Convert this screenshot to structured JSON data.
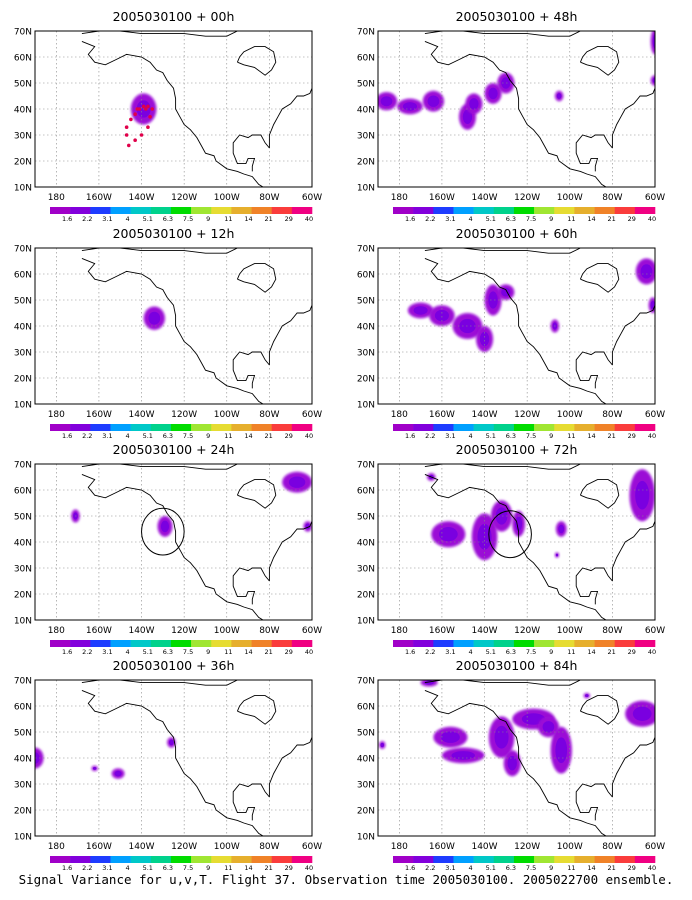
{
  "colorbar": {
    "labels": [
      "1.6",
      "2.2",
      "3.1",
      "4",
      "5.1",
      "6.3",
      "7.5",
      "9",
      "11",
      "14",
      "21",
      "29",
      "40"
    ],
    "colors": [
      "#a000c8",
      "#8200dc",
      "#1e3cff",
      "#00a0ff",
      "#00c8c8",
      "#00d28c",
      "#00dc00",
      "#a0e632",
      "#e6dc32",
      "#e6af2d",
      "#f08228",
      "#fa3c3c",
      "#f00082"
    ]
  },
  "axes": {
    "lon_labels": [
      "180",
      "160W",
      "140W",
      "120W",
      "100W",
      "80W",
      "60W"
    ],
    "lat_labels": [
      "10N",
      "20N",
      "30N",
      "40N",
      "50N",
      "60N",
      "70N"
    ]
  },
  "map": {
    "lon_range": [
      -190,
      -60
    ],
    "lat_range": [
      10,
      70
    ],
    "grid": true
  },
  "panels": [
    {
      "title": "2005030100 + 00h",
      "blobs": [
        {
          "lon": -139,
          "lat": 40,
          "rlon": 6,
          "rlat": 6
        }
      ],
      "circles": [],
      "track": [
        [
          -142,
          40
        ],
        [
          -138,
          40
        ],
        [
          -136,
          37
        ],
        [
          -137,
          33
        ],
        [
          -140,
          30
        ],
        [
          -143,
          28
        ],
        [
          -146,
          26
        ],
        [
          -147,
          30
        ],
        [
          -147,
          33
        ],
        [
          -145,
          36
        ],
        [
          -143,
          38
        ],
        [
          -141,
          40
        ],
        [
          -139,
          41
        ],
        [
          -137,
          41
        ],
        [
          -135,
          40
        ]
      ]
    },
    {
      "title": "2005030100 + 12h",
      "blobs": [
        {
          "lon": -134,
          "lat": 43,
          "rlon": 5,
          "rlat": 4.5
        }
      ],
      "circles": [],
      "track": []
    },
    {
      "title": "2005030100 + 24h",
      "blobs": [
        {
          "lon": -171,
          "lat": 50,
          "rlon": 2,
          "rlat": 2.5
        },
        {
          "lon": -129,
          "lat": 46,
          "rlon": 3.5,
          "rlat": 4
        },
        {
          "lon": -67,
          "lat": 63,
          "rlon": 7,
          "rlat": 4
        },
        {
          "lon": -62,
          "lat": 46,
          "rlon": 2,
          "rlat": 2
        }
      ],
      "circles": [
        {
          "lon": -130,
          "lat": 44,
          "rlon": 10,
          "rlat": 9
        }
      ],
      "track": []
    },
    {
      "title": "2005030100 + 36h",
      "blobs": [
        {
          "lon": -190,
          "lat": 40,
          "rlon": 4,
          "rlat": 4
        },
        {
          "lon": -162,
          "lat": 36,
          "rlon": 1.5,
          "rlat": 1
        },
        {
          "lon": -151,
          "lat": 34,
          "rlon": 3,
          "rlat": 2
        },
        {
          "lon": -126,
          "lat": 46,
          "rlon": 2,
          "rlat": 2
        }
      ],
      "circles": [],
      "track": []
    },
    {
      "title": "2005030100 + 48h",
      "blobs": [
        {
          "lon": -186,
          "lat": 43,
          "rlon": 5,
          "rlat": 3.5
        },
        {
          "lon": -175,
          "lat": 41,
          "rlon": 6,
          "rlat": 3
        },
        {
          "lon": -164,
          "lat": 43,
          "rlon": 5,
          "rlat": 4
        },
        {
          "lon": -148,
          "lat": 37,
          "rlon": 4,
          "rlat": 5
        },
        {
          "lon": -145,
          "lat": 42,
          "rlon": 4,
          "rlat": 4
        },
        {
          "lon": -136,
          "lat": 46,
          "rlon": 4,
          "rlat": 4
        },
        {
          "lon": -130,
          "lat": 50,
          "rlon": 4,
          "rlat": 4
        },
        {
          "lon": -105,
          "lat": 45,
          "rlon": 2,
          "rlat": 2
        },
        {
          "lon": -60,
          "lat": 66,
          "rlon": 2,
          "rlat": 5
        },
        {
          "lon": -60,
          "lat": 51,
          "rlon": 2,
          "rlat": 2
        }
      ],
      "circles": [],
      "track": []
    },
    {
      "title": "2005030100 + 60h",
      "blobs": [
        {
          "lon": -170,
          "lat": 46,
          "rlon": 6,
          "rlat": 3
        },
        {
          "lon": -160,
          "lat": 44,
          "rlon": 6,
          "rlat": 4
        },
        {
          "lon": -148,
          "lat": 40,
          "rlon": 7,
          "rlat": 5
        },
        {
          "lon": -140,
          "lat": 35,
          "rlon": 4,
          "rlat": 5
        },
        {
          "lon": -136,
          "lat": 50,
          "rlon": 4,
          "rlat": 6
        },
        {
          "lon": -130,
          "lat": 53,
          "rlon": 4,
          "rlat": 3
        },
        {
          "lon": -107,
          "lat": 40,
          "rlon": 2,
          "rlat": 2.5
        },
        {
          "lon": -64,
          "lat": 61,
          "rlon": 5,
          "rlat": 5
        },
        {
          "lon": -61,
          "lat": 48,
          "rlon": 2,
          "rlat": 3
        }
      ],
      "circles": [],
      "track": []
    },
    {
      "title": "2005030100 + 72h",
      "blobs": [
        {
          "lon": -157,
          "lat": 43,
          "rlon": 8,
          "rlat": 5
        },
        {
          "lon": -140,
          "lat": 42,
          "rlon": 6,
          "rlat": 9
        },
        {
          "lon": -132,
          "lat": 50,
          "rlon": 5,
          "rlat": 6
        },
        {
          "lon": -124,
          "lat": 47,
          "rlon": 3,
          "rlat": 5
        },
        {
          "lon": -104,
          "lat": 45,
          "rlon": 2.5,
          "rlat": 3
        },
        {
          "lon": -106,
          "lat": 35,
          "rlon": 1,
          "rlat": 1
        },
        {
          "lon": -165,
          "lat": 65,
          "rlon": 2,
          "rlat": 1.5
        },
        {
          "lon": -66,
          "lat": 58,
          "rlon": 6,
          "rlat": 10
        }
      ],
      "circles": [
        {
          "lon": -128,
          "lat": 43,
          "rlon": 10,
          "rlat": 9
        }
      ],
      "track": []
    },
    {
      "title": "2005030100 + 84h",
      "blobs": [
        {
          "lon": -156,
          "lat": 48,
          "rlon": 8,
          "rlat": 4
        },
        {
          "lon": -150,
          "lat": 41,
          "rlon": 10,
          "rlat": 3
        },
        {
          "lon": -132,
          "lat": 48,
          "rlon": 6,
          "rlat": 8
        },
        {
          "lon": -127,
          "lat": 38,
          "rlon": 4,
          "rlat": 5
        },
        {
          "lon": -117,
          "lat": 55,
          "rlon": 10,
          "rlat": 4
        },
        {
          "lon": -104,
          "lat": 43,
          "rlon": 5,
          "rlat": 9
        },
        {
          "lon": -110,
          "lat": 52,
          "rlon": 5,
          "rlat": 4
        },
        {
          "lon": -166,
          "lat": 69,
          "rlon": 4,
          "rlat": 1.5
        },
        {
          "lon": -66,
          "lat": 57,
          "rlon": 8,
          "rlat": 5
        },
        {
          "lon": -92,
          "lat": 64,
          "rlon": 1.5,
          "rlat": 1
        },
        {
          "lon": -188,
          "lat": 45,
          "rlon": 1.5,
          "rlat": 1.5
        }
      ],
      "circles": [],
      "track": []
    }
  ],
  "caption": "Signal Variance for u,v,T. Flight 37. Observation time 2005030100. 2005022700 ensemble."
}
